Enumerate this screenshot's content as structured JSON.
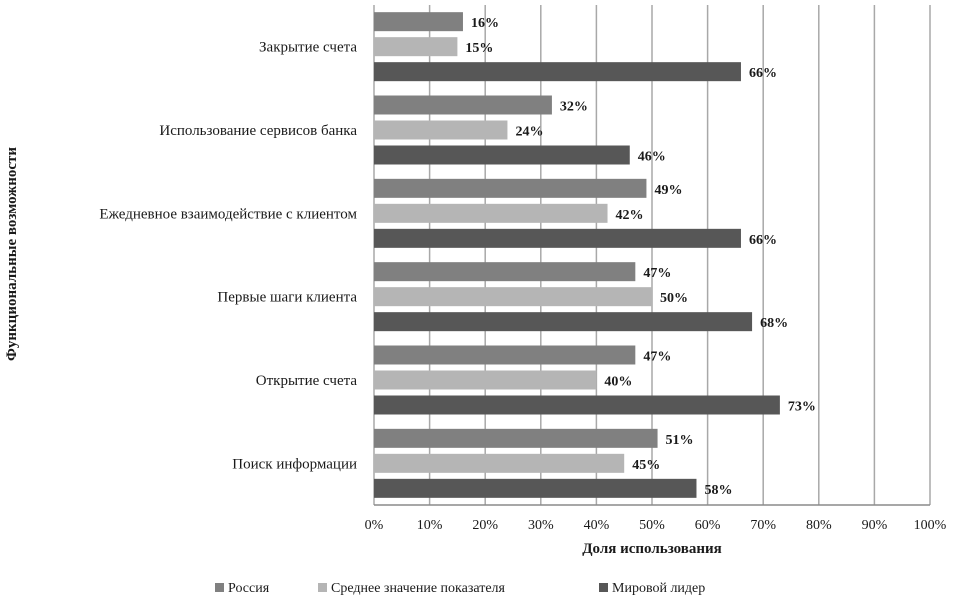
{
  "chart_data": {
    "type": "bar",
    "orientation": "horizontal",
    "categories": [
      "Закрытие счета",
      "Использование сервисов банка",
      "Ежедневное взаимодействие с клиентом",
      "Первые шаги клиента",
      "Открытие счета",
      "Поиск информации"
    ],
    "series": [
      {
        "name": "Россия",
        "color": "#808080",
        "values": [
          16,
          32,
          49,
          47,
          47,
          51
        ]
      },
      {
        "name": "Среднее значение показателя",
        "color": "#b5b5b5",
        "values": [
          15,
          24,
          42,
          50,
          40,
          45
        ]
      },
      {
        "name": "Мировой лидер",
        "color": "#575757",
        "values": [
          66,
          46,
          66,
          68,
          73,
          58
        ]
      }
    ],
    "value_suffix": "%",
    "xlabel": "Доля использования",
    "ylabel": "Функциональные возможности",
    "xlim": [
      0,
      100
    ],
    "xticks": [
      0,
      10,
      20,
      30,
      40,
      50,
      60,
      70,
      80,
      90,
      100
    ],
    "tick_labels": [
      "0%",
      "10%",
      "20%",
      "30%",
      "40%",
      "50%",
      "60%",
      "70%",
      "80%",
      "90%",
      "100%"
    ],
    "grid": "vertical",
    "legend": "bottom"
  }
}
